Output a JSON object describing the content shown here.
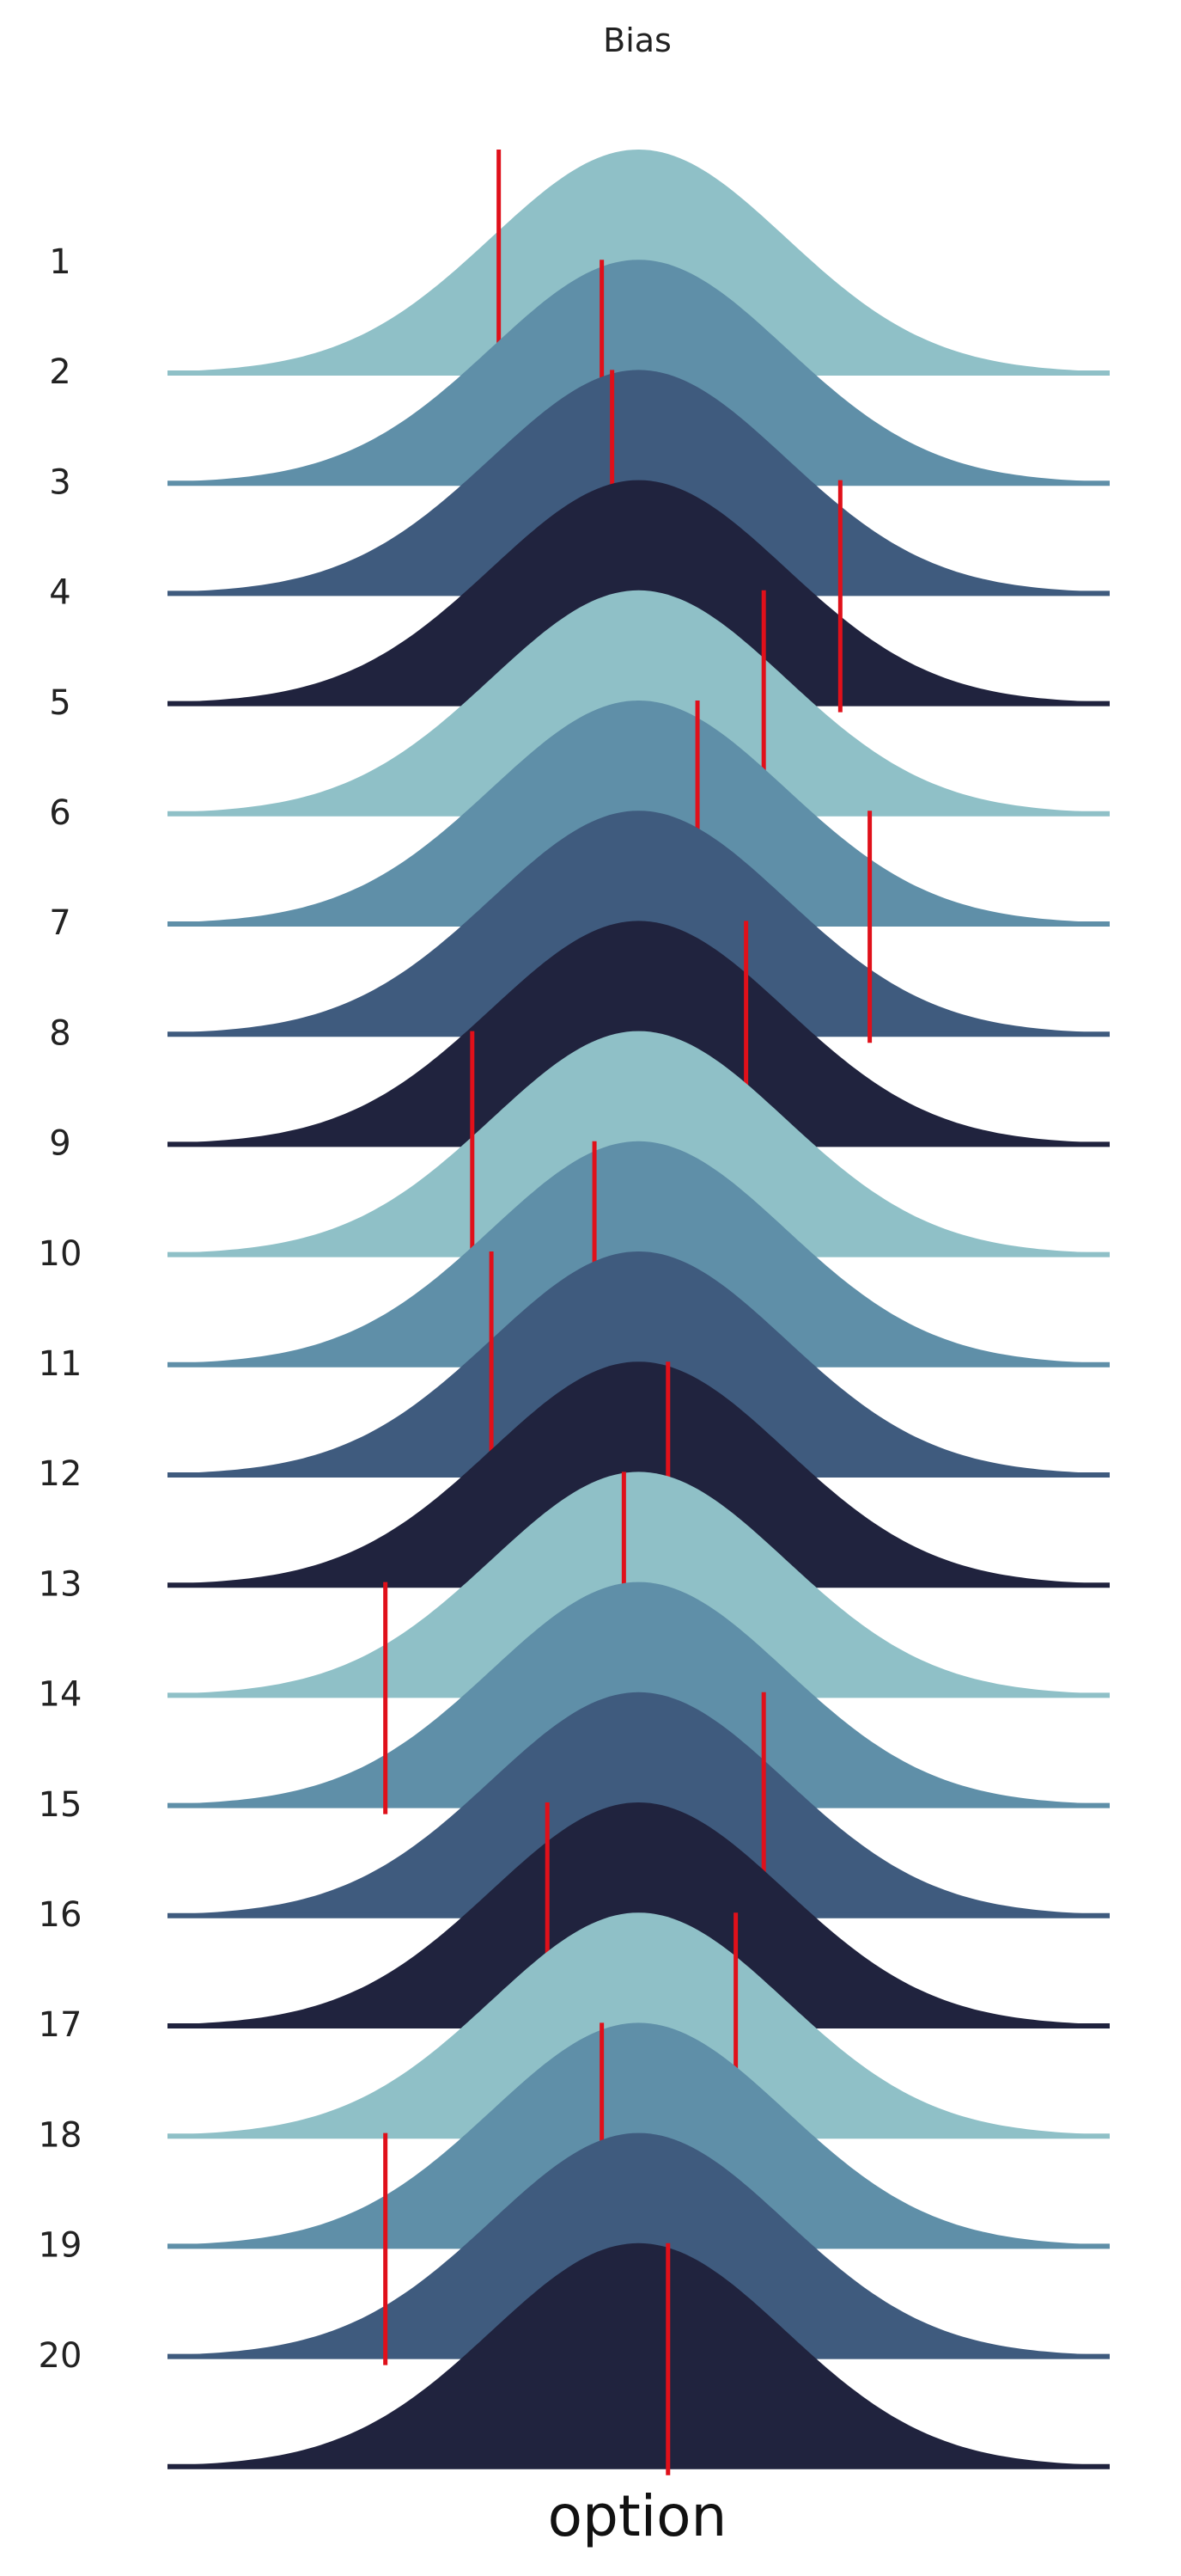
{
  "chart_data": {
    "type": "area",
    "title": "Bias",
    "xlabel": "option",
    "ylabel": "",
    "categories": [
      "1",
      "2",
      "3",
      "4",
      "5",
      "6",
      "7",
      "8",
      "9",
      "10",
      "11",
      "12",
      "13",
      "14",
      "15",
      "16",
      "17",
      "18",
      "19",
      "20"
    ],
    "distribution": {
      "kind": "normal",
      "mean": 0,
      "sd": 1,
      "xlim": [
        -3.2,
        3.2
      ]
    },
    "bias_markers": [
      -0.95,
      -0.25,
      -0.18,
      1.37,
      0.85,
      0.4,
      1.57,
      0.73,
      -1.13,
      -0.3,
      -1.0,
      0.2,
      -0.1,
      -1.72,
      0.85,
      -0.62,
      0.66,
      -0.25,
      -1.72,
      0.2
    ],
    "grid": false,
    "legend": "none",
    "colors": {
      "palette": [
        "#8fc0c7",
        "#5f8fa8",
        "#3f5b7e",
        "#20233e"
      ],
      "marker": "#e0101a"
    }
  }
}
